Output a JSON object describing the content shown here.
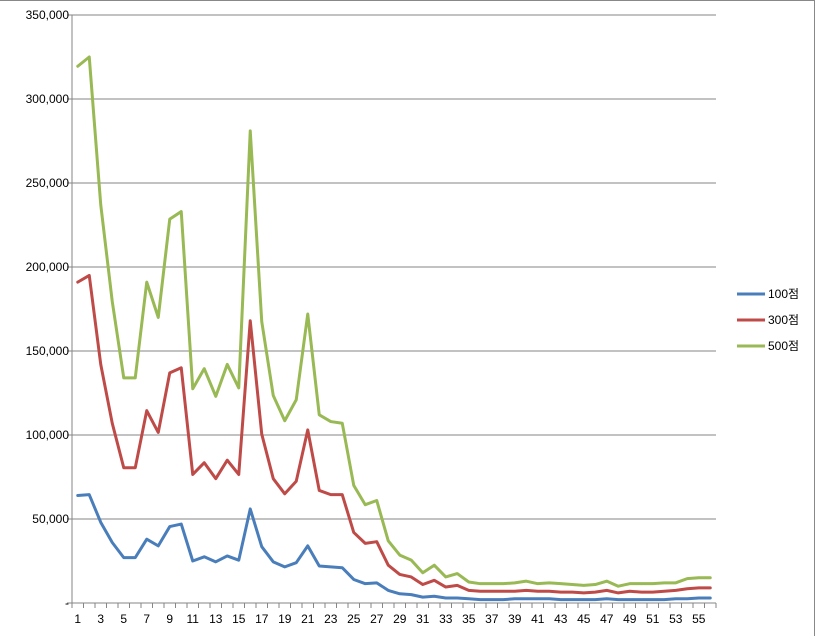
{
  "chart_data": {
    "type": "line",
    "title": "",
    "xlabel": "",
    "ylabel": "",
    "ylim": [
      0,
      350000
    ],
    "yticks": [
      0,
      50000,
      100000,
      150000,
      200000,
      250000,
      300000,
      350000
    ],
    "ytick_labels": [
      "-",
      "50,000",
      "100,000",
      "150,000",
      "200,000",
      "250,000",
      "300,000",
      "350,000"
    ],
    "x": [
      1,
      2,
      3,
      4,
      5,
      6,
      7,
      8,
      9,
      10,
      11,
      12,
      13,
      14,
      15,
      16,
      17,
      18,
      19,
      20,
      21,
      22,
      23,
      24,
      25,
      26,
      27,
      28,
      29,
      30,
      31,
      32,
      33,
      34,
      35,
      36,
      37,
      38,
      39,
      40,
      41,
      42,
      43,
      44,
      45,
      46,
      47,
      48,
      49,
      50,
      51,
      52,
      53,
      54,
      55,
      56
    ],
    "xtick_labels": [
      "1",
      "3",
      "5",
      "7",
      "9",
      "11",
      "13",
      "15",
      "17",
      "19",
      "21",
      "23",
      "25",
      "27",
      "29",
      "31",
      "33",
      "35",
      "37",
      "39",
      "41",
      "43",
      "45",
      "47",
      "49",
      "51",
      "53",
      "55"
    ],
    "grid": true,
    "legend_position": "right",
    "series": [
      {
        "name": "100점",
        "color": "#4a7ebb",
        "values": [
          64000,
          64500,
          48000,
          36000,
          27000,
          27000,
          38000,
          34000,
          45500,
          47000,
          25000,
          27500,
          24500,
          28000,
          25500,
          56000,
          33500,
          24500,
          21500,
          24000,
          34000,
          22000,
          21500,
          21000,
          14000,
          11500,
          12000,
          7500,
          5500,
          5000,
          3500,
          4000,
          3000,
          3000,
          2500,
          2000,
          2000,
          2000,
          2500,
          2500,
          2500,
          2500,
          2000,
          2000,
          2000,
          2000,
          2500,
          2000,
          2000,
          2000,
          2000,
          2000,
          2500,
          2500,
          3000,
          3000
        ]
      },
      {
        "name": "300점",
        "color": "#be4b48",
        "values": [
          191000,
          195000,
          142000,
          107000,
          80500,
          80500,
          114500,
          101500,
          137000,
          140000,
          76500,
          83500,
          74000,
          85000,
          76500,
          168000,
          100500,
          74000,
          65000,
          72500,
          103000,
          67000,
          64500,
          64500,
          42000,
          35500,
          36500,
          22500,
          17000,
          15500,
          11000,
          13500,
          9500,
          10500,
          7500,
          7000,
          7000,
          7000,
          7000,
          7500,
          7000,
          7000,
          6500,
          6500,
          6000,
          6500,
          7500,
          6000,
          7000,
          6500,
          6500,
          7000,
          7500,
          8500,
          9000,
          9000
        ]
      },
      {
        "name": "500점",
        "color": "#98b954",
        "values": [
          319500,
          325000,
          237000,
          179500,
          134000,
          134000,
          191000,
          170000,
          228500,
          233000,
          127500,
          139500,
          123000,
          142000,
          128000,
          281000,
          167500,
          123500,
          108500,
          121000,
          172000,
          112000,
          108000,
          107000,
          70000,
          58500,
          61000,
          37000,
          28500,
          25500,
          18000,
          22500,
          15500,
          17500,
          12500,
          11500,
          11500,
          11500,
          12000,
          13000,
          11500,
          12000,
          11500,
          11000,
          10500,
          11000,
          13000,
          10000,
          11500,
          11500,
          11500,
          12000,
          12000,
          14500,
          15000,
          15000
        ]
      }
    ]
  }
}
